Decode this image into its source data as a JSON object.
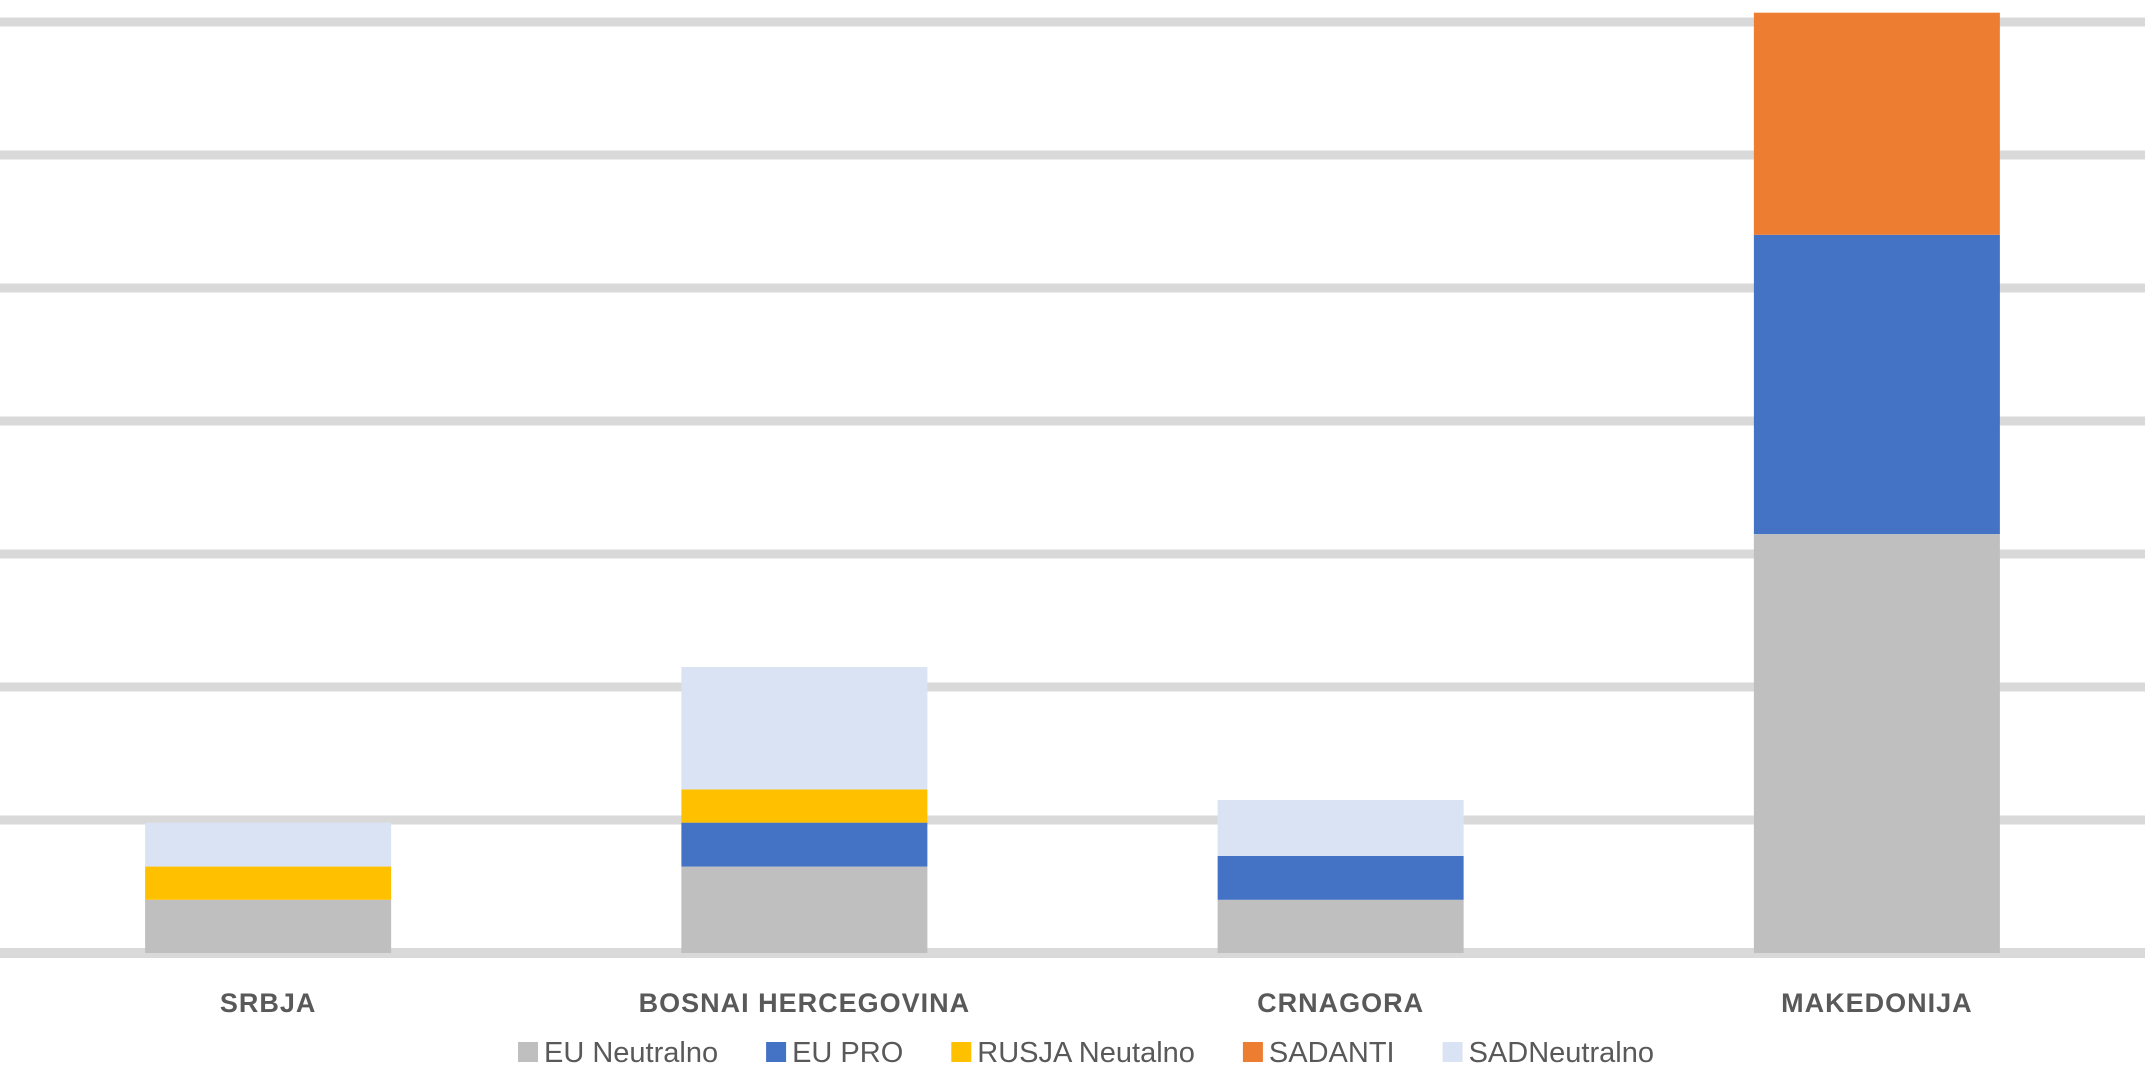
{
  "chart_data": {
    "type": "bar",
    "stacked": true,
    "title": "",
    "xlabel": "",
    "ylabel": "",
    "categories": [
      "SRBJA",
      "BOSNAI HERCEGOVINA",
      "CRNAGORA",
      "MAKEDONIJA"
    ],
    "series": [
      {
        "name": "EU Neutralno",
        "color": "#BFBFBF",
        "values": [
          0.4,
          0.65,
          0.4,
          3.15
        ]
      },
      {
        "name": "EU PRO",
        "color": "#4472C4",
        "values": [
          0,
          0.33,
          0.33,
          2.25
        ]
      },
      {
        "name": "RUSJA Neutalno",
        "color": "#FFC000",
        "values": [
          0.25,
          0.25,
          0,
          0
        ]
      },
      {
        "name": "SADANTI",
        "color": "#ED7D31",
        "values": [
          0,
          0,
          0,
          1.67
        ]
      },
      {
        "name": "SADNeutralno",
        "color": "#DAE3F3",
        "values": [
          0.33,
          0.92,
          0.42,
          0
        ]
      }
    ],
    "ylim": [
      0,
      7
    ],
    "grid": true,
    "legend": "bottom"
  }
}
